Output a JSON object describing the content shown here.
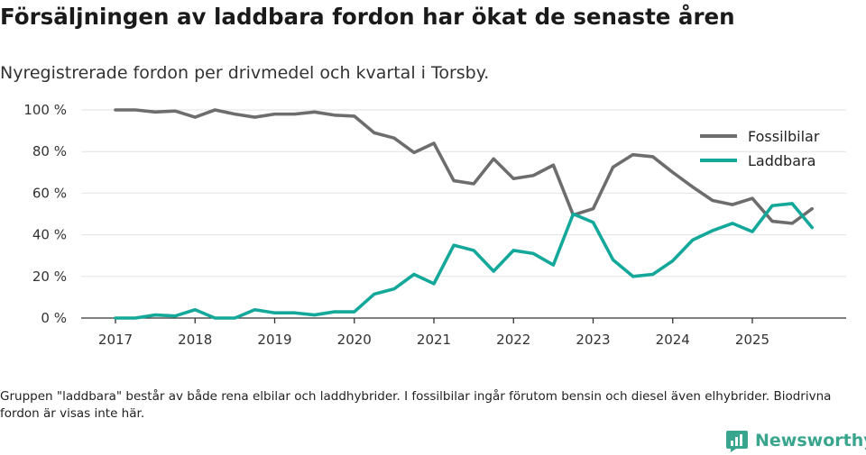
{
  "title": "Försäljningen av laddbara fordon har ökat de senaste åren",
  "subtitle": "Nyregistrerade fordon per drivmedel och kvartal i Torsby.",
  "footnote": "Gruppen \"laddbara\" består av både rena elbilar och laddhybrider. I fossilbilar ingår förutom bensin och diesel även elhybrider. Biodrivna fordon är visas inte här.",
  "brand": {
    "name": "Newsworthy",
    "color": "#3aa58f"
  },
  "colors": {
    "fossil": "#6d6d6d",
    "laddbara": "#14a89a",
    "grid": "#e2e2e2",
    "axis": "#333333"
  },
  "chart_data": {
    "type": "line",
    "title": "Försäljningen av laddbara fordon har ökat de senaste åren",
    "xlabel": "",
    "ylabel": "",
    "ylim": [
      0,
      100
    ],
    "xlim": [
      2016.6,
      2026.2
    ],
    "grid": true,
    "legend": "top-right",
    "x_ticks": [
      "2017",
      "2018",
      "2019",
      "2020",
      "2021",
      "2022",
      "2023",
      "2024",
      "2025"
    ],
    "y_ticks": [
      "0 %",
      "20 %",
      "40 %",
      "60 %",
      "80 %",
      "100 %"
    ],
    "x": [
      2017.0,
      2017.25,
      2017.5,
      2017.75,
      2018.0,
      2018.25,
      2018.5,
      2018.75,
      2019.0,
      2019.25,
      2019.5,
      2019.75,
      2020.0,
      2020.25,
      2020.5,
      2020.75,
      2021.0,
      2021.25,
      2021.5,
      2021.75,
      2022.0,
      2022.25,
      2022.5,
      2022.75,
      2023.0,
      2023.25,
      2023.5,
      2023.75,
      2024.0,
      2024.25,
      2024.5,
      2024.75,
      2025.0,
      2025.25,
      2025.5,
      2025.75
    ],
    "series": [
      {
        "name": "Fossilbilar",
        "color": "#6d6d6d",
        "values": [
          100,
          100,
          99,
          99.5,
          96.5,
          100,
          98,
          96.5,
          98,
          98,
          99,
          97.5,
          97,
          89,
          86.5,
          79.5,
          84,
          66,
          64.5,
          76.5,
          67,
          68.5,
          73.5,
          49.5,
          52.5,
          72.5,
          78.5,
          77.5,
          70,
          63,
          56.5,
          54.5,
          57.5,
          46.5,
          45.5,
          52.5
        ]
      },
      {
        "name": "Laddbara",
        "color": "#14a89a",
        "values": [
          0,
          0,
          1.5,
          1,
          4,
          0,
          0,
          4,
          2.5,
          2.5,
          1.5,
          3,
          3,
          11.5,
          14,
          21,
          16.5,
          35,
          32.5,
          22.5,
          32.5,
          31,
          25.5,
          50,
          46,
          28,
          20,
          21,
          27.5,
          37.5,
          42,
          45.5,
          41.5,
          54,
          55,
          43.5
        ]
      }
    ]
  }
}
